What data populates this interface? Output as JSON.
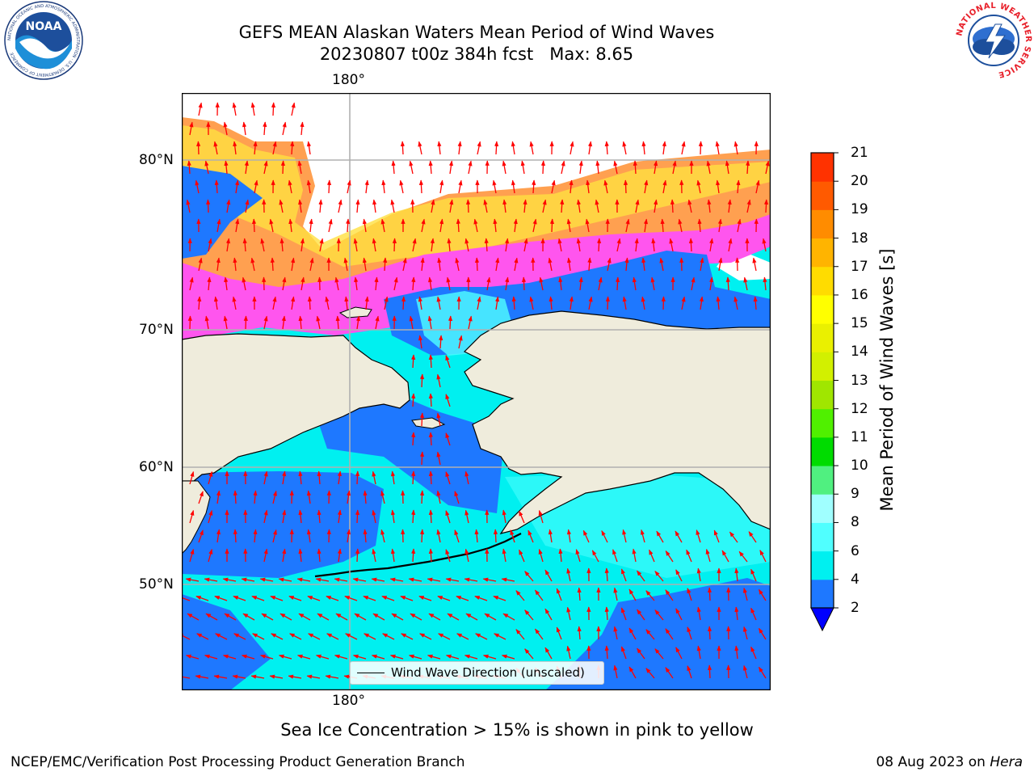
{
  "title": {
    "line1": "GEFS MEAN Alaskan Waters Mean Period of Wind Waves",
    "line2": "20230807 t00z 384h fcst   Max: 8.65"
  },
  "map": {
    "lon_label_top": "180°",
    "lon_label_bottom": "180°",
    "lat_labels": [
      "80°N",
      "70°N",
      "60°N",
      "50°N"
    ],
    "legend_label": "Wind Wave Direction (unscaled)",
    "colors": {
      "land": "#efecdc",
      "ice_white": "#ffffff",
      "wave_2_4": "#1e78ff",
      "wave_4_6": "#00f0f0",
      "wave_6_8": "#50ffff",
      "ice_pink": "#ff55ee",
      "ice_orange": "#ffa040",
      "ice_yellow": "#ffe040",
      "arrow": "#ff0000",
      "grid": "#b0b0b0"
    }
  },
  "colorbar": {
    "label": "Mean Period of Wind Waves [s]",
    "ticks": [
      "2",
      "4",
      "6",
      "8",
      "9",
      "10",
      "11",
      "12",
      "13",
      "14",
      "15",
      "16",
      "17",
      "18",
      "19",
      "20",
      "21"
    ],
    "colors": [
      "#1e78ff",
      "#00f0f0",
      "#50ffff",
      "#a0ffff",
      "#50f080",
      "#00dc00",
      "#50f000",
      "#a0e600",
      "#d2f000",
      "#eaf000",
      "#ffff00",
      "#ffdc00",
      "#ffb400",
      "#ff8c00",
      "#ff5a00",
      "#ff3200",
      "#ff0000"
    ],
    "extend_color": "#0000ff"
  },
  "caption": "Sea Ice Concentration > 15% is shown in pink to yellow",
  "footer": {
    "left": "NCEP/EMC/Verification Post Processing Product Generation Branch",
    "right_date": "08 Aug 2023 on ",
    "right_host": "Hera"
  },
  "logos": {
    "noaa_text": "NOAA",
    "noaa_ring": "NATIONAL OCEANIC AND ATMOSPHERIC ADMINISTRATION · U.S. DEPARTMENT OF COMMERCE",
    "nws_ring": "NATIONAL WEATHER SERVICE"
  }
}
